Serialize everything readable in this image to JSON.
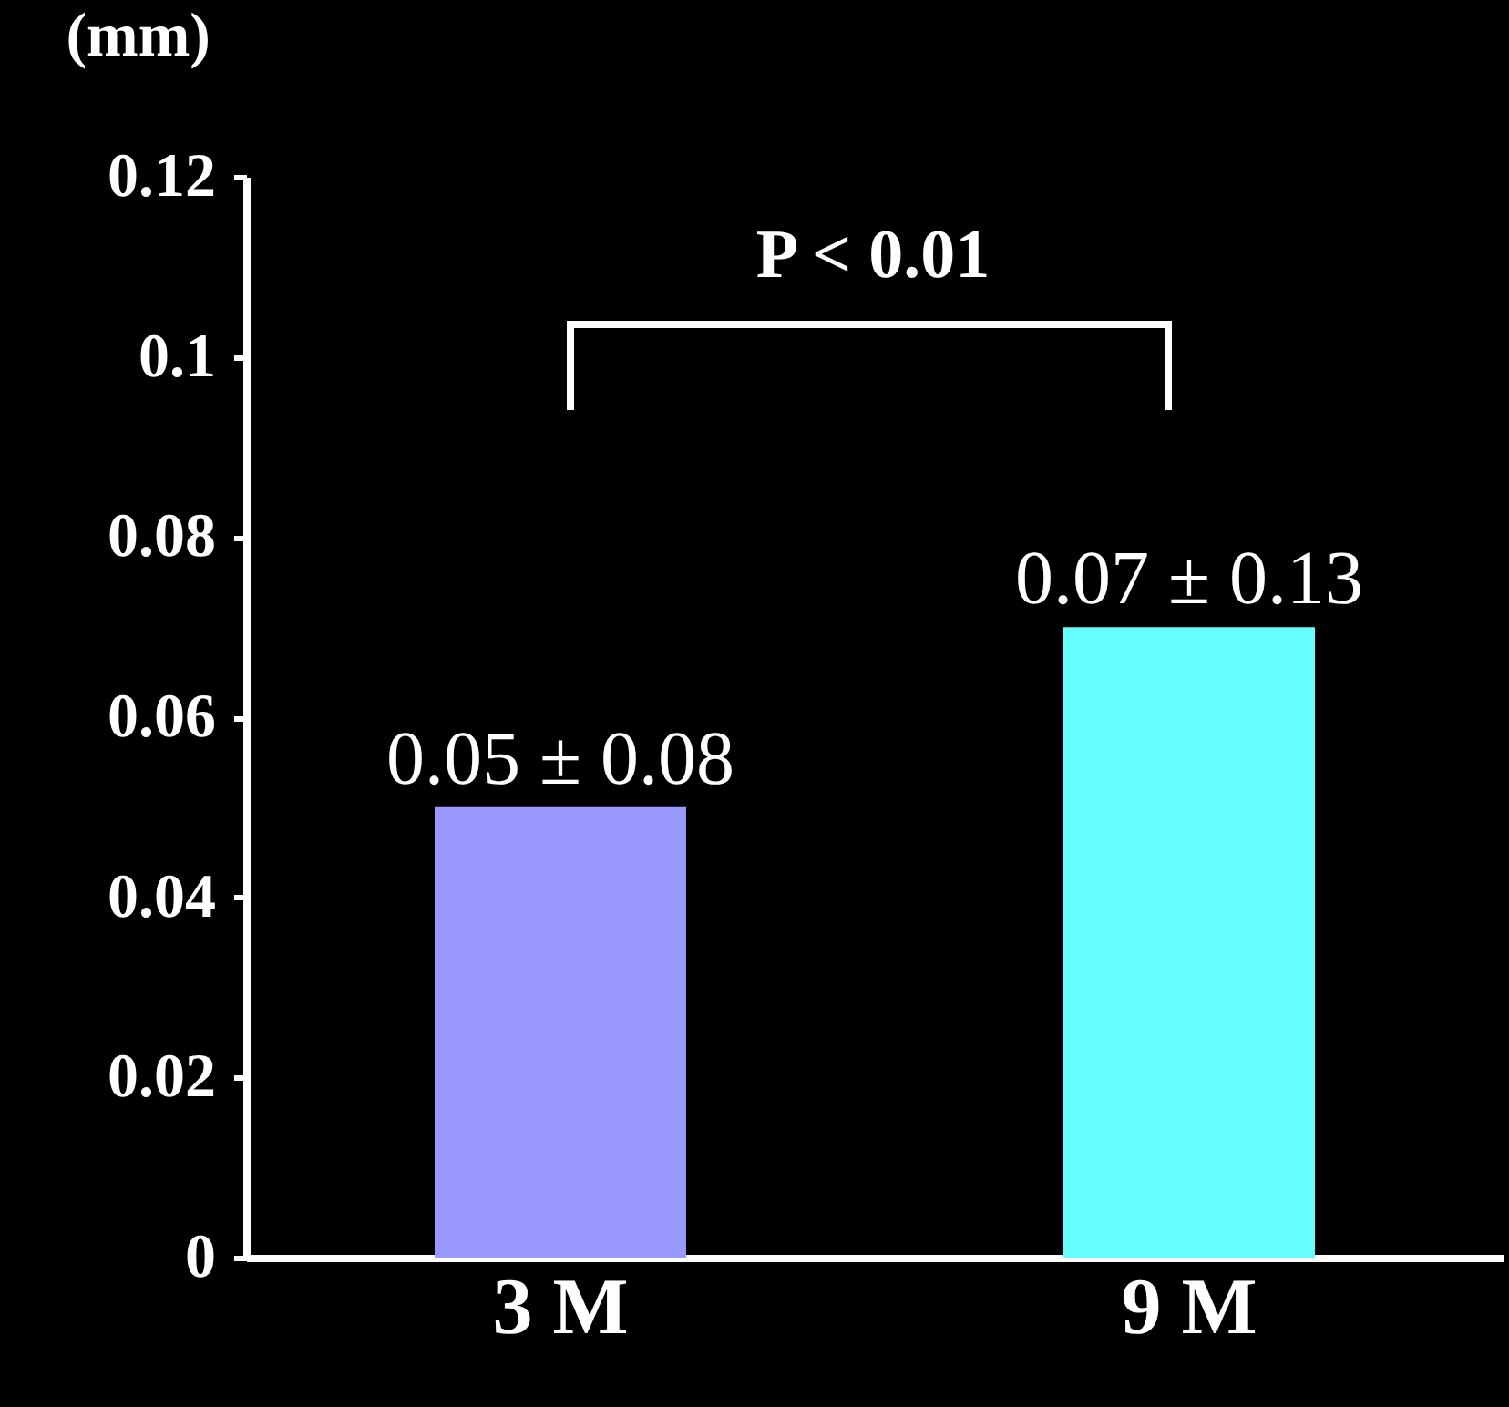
{
  "chart_data": {
    "type": "bar",
    "ylabel": "(mm)",
    "categories": [
      "3 M",
      "9 M"
    ],
    "values": [
      0.05,
      0.07
    ],
    "colors": [
      "#9999ff",
      "#66ffff"
    ],
    "value_labels": [
      "0.05 ± 0.08",
      "0.07 ± 0.13"
    ],
    "ylim": [
      0,
      0.12
    ],
    "yticks": [
      0,
      0.02,
      0.04,
      0.06,
      0.08,
      0.1,
      0.12
    ],
    "annotations": [
      "P < 0.01"
    ]
  }
}
